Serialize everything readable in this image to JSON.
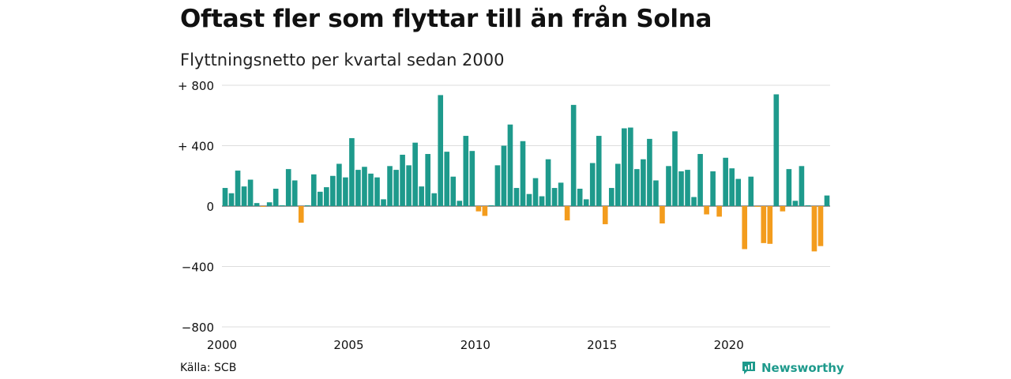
{
  "title": "Oftast fler som flyttar till än från Solna",
  "subtitle": "Flyttningsnetto per kvartal sedan 2000",
  "source": "Källa: SCB",
  "brand": {
    "name": "Newsworthy",
    "icon": "newsworthy-logo-icon"
  },
  "colors": {
    "positive": "#1e9a8c",
    "negative": "#f39c1d",
    "grid": "#dddddd",
    "zero_line": "#333333"
  },
  "chart_data": {
    "type": "bar",
    "title": "Oftast fler som flyttar till än från Solna",
    "subtitle": "Flyttningsnetto per kvartal sedan 2000",
    "xlabel": "",
    "ylabel": "",
    "ylim": [
      -800,
      800
    ],
    "y_ticks": [
      {
        "value": 800,
        "label": "+ 800"
      },
      {
        "value": 400,
        "label": "+ 400"
      },
      {
        "value": 0,
        "label": "0"
      },
      {
        "value": -400,
        "label": "−400"
      },
      {
        "value": -800,
        "label": "−800"
      }
    ],
    "x_ticks": [
      {
        "year": 2000,
        "label": "2000"
      },
      {
        "year": 2005,
        "label": "2005"
      },
      {
        "year": 2010,
        "label": "2010"
      },
      {
        "year": 2015,
        "label": "2015"
      },
      {
        "year": 2020,
        "label": "2020"
      }
    ],
    "grid": true,
    "legend": "none",
    "categories": [
      "2000 Q1",
      "2000 Q2",
      "2000 Q3",
      "2000 Q4",
      "2001 Q1",
      "2001 Q2",
      "2001 Q3",
      "2001 Q4",
      "2002 Q1",
      "2002 Q2",
      "2002 Q3",
      "2002 Q4",
      "2003 Q1",
      "2003 Q2",
      "2003 Q3",
      "2003 Q4",
      "2004 Q1",
      "2004 Q2",
      "2004 Q3",
      "2004 Q4",
      "2005 Q1",
      "2005 Q2",
      "2005 Q3",
      "2005 Q4",
      "2006 Q1",
      "2006 Q2",
      "2006 Q3",
      "2006 Q4",
      "2007 Q1",
      "2007 Q2",
      "2007 Q3",
      "2007 Q4",
      "2008 Q1",
      "2008 Q2",
      "2008 Q3",
      "2008 Q4",
      "2009 Q1",
      "2009 Q2",
      "2009 Q3",
      "2009 Q4",
      "2010 Q1",
      "2010 Q2",
      "2010 Q3",
      "2010 Q4",
      "2011 Q1",
      "2011 Q2",
      "2011 Q3",
      "2011 Q4",
      "2012 Q1",
      "2012 Q2",
      "2012 Q3",
      "2012 Q4",
      "2013 Q1",
      "2013 Q2",
      "2013 Q3",
      "2013 Q4",
      "2014 Q1",
      "2014 Q2",
      "2014 Q3",
      "2014 Q4",
      "2015 Q1",
      "2015 Q2",
      "2015 Q3",
      "2015 Q4",
      "2016 Q1",
      "2016 Q2",
      "2016 Q3",
      "2016 Q4",
      "2017 Q1",
      "2017 Q2",
      "2017 Q3",
      "2017 Q4",
      "2018 Q1",
      "2018 Q2",
      "2018 Q3",
      "2018 Q4",
      "2019 Q1",
      "2019 Q2",
      "2019 Q3",
      "2019 Q4",
      "2020 Q1",
      "2020 Q2",
      "2020 Q3",
      "2020 Q4",
      "2021 Q1",
      "2021 Q2",
      "2021 Q3",
      "2021 Q4",
      "2022 Q1",
      "2022 Q2",
      "2022 Q3",
      "2022 Q4",
      "2023 Q1",
      "2023 Q2",
      "2023 Q3",
      "2023 Q4"
    ],
    "values": [
      120,
      85,
      235,
      130,
      175,
      20,
      -5,
      25,
      115,
      5,
      245,
      170,
      -110,
      5,
      210,
      95,
      125,
      200,
      280,
      190,
      450,
      240,
      260,
      215,
      190,
      45,
      265,
      240,
      340,
      270,
      420,
      130,
      345,
      85,
      735,
      360,
      195,
      35,
      465,
      365,
      -35,
      -65,
      5,
      270,
      400,
      540,
      120,
      430,
      80,
      185,
      65,
      310,
      120,
      155,
      -95,
      670,
      115,
      45,
      285,
      465,
      -120,
      120,
      280,
      515,
      520,
      245,
      310,
      445,
      170,
      -115,
      265,
      495,
      230,
      240,
      60,
      345,
      -55,
      230,
      -70,
      320,
      250,
      180,
      -285,
      195,
      -5,
      -245,
      -250,
      740,
      -35,
      245,
      35,
      265,
      5,
      -300,
      -265,
      70
    ]
  }
}
